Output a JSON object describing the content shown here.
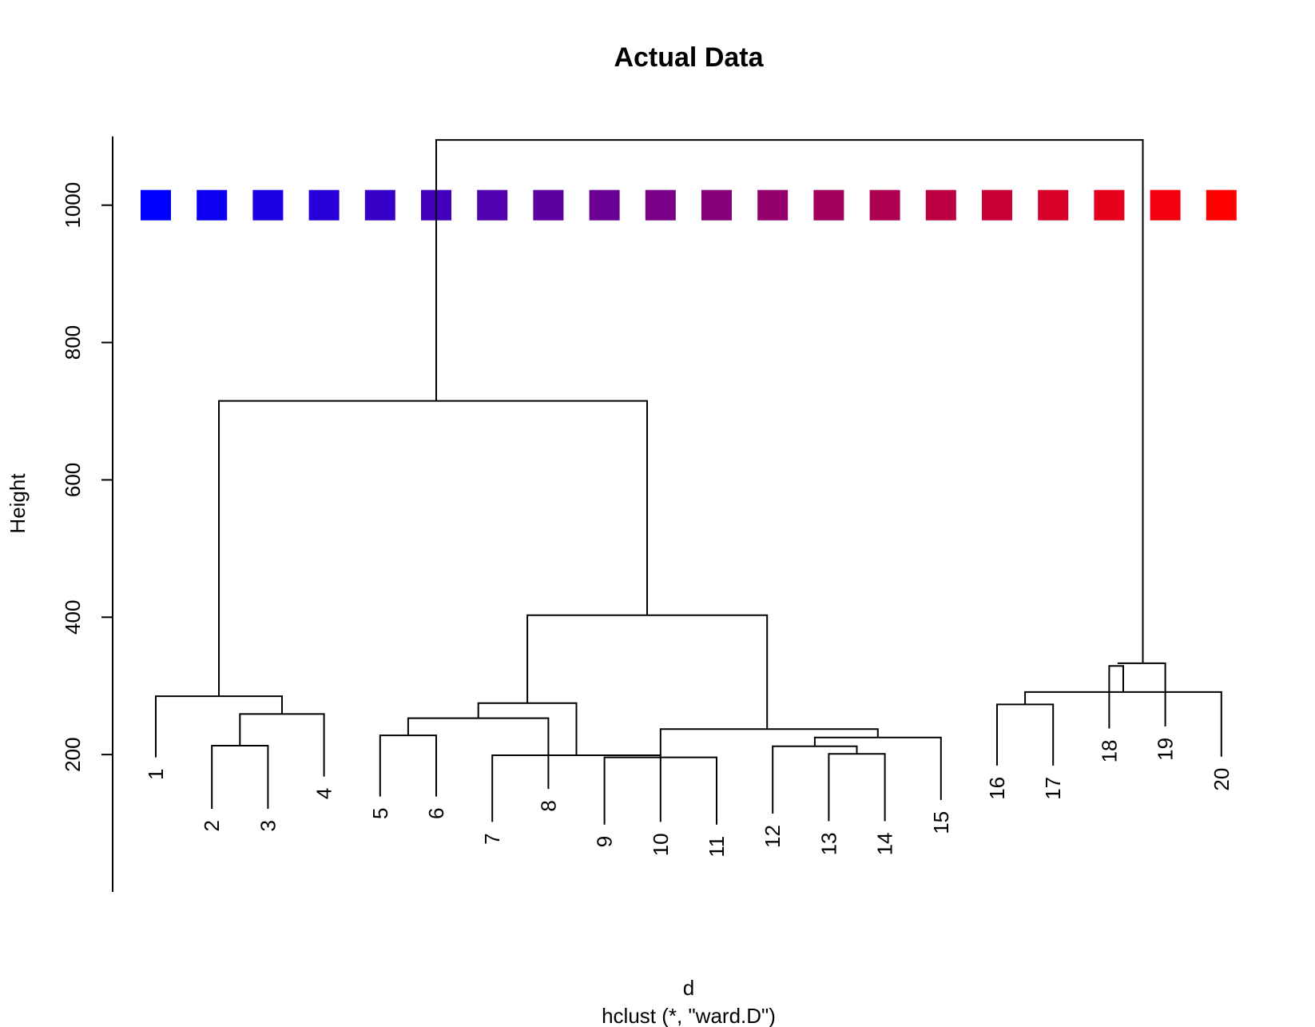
{
  "chart_data": {
    "type": "dendrogram",
    "title": "Actual Data",
    "ylabel": "Height",
    "xlabel": "d",
    "sub": "hclust (*, \"ward.D\")",
    "ylim": [
      0,
      1100
    ],
    "yticks": [
      200,
      400,
      600,
      800,
      1000
    ],
    "leaves": [
      "1",
      "2",
      "3",
      "4",
      "5",
      "6",
      "7",
      "8",
      "9",
      "10",
      "11",
      "12",
      "13",
      "14",
      "15",
      "16",
      "17",
      "18",
      "19",
      "20"
    ],
    "leaf_tips": [
      196,
      121,
      121,
      168,
      139,
      139,
      102,
      150,
      98,
      102,
      98,
      114,
      103,
      103,
      134,
      184,
      184,
      238,
      241,
      197
    ],
    "merges": [
      {
        "left": 2,
        "right": 3,
        "height": 213
      },
      {
        "left": 13,
        "right": 14,
        "height": 201
      },
      {
        "left": 9,
        "right": 10,
        "height": 196
      },
      {
        "left": 5,
        "right": 6,
        "height": 228
      },
      {
        "left": 12,
        "right": 15,
        "height": 212
      },
      {
        "left": 16,
        "right": 17,
        "height": 273
      },
      {
        "left": 18,
        "right": 19,
        "height": 329
      },
      {
        "left": 1,
        "right": 4,
        "height": 259
      },
      {
        "left": 3,
        "right": 8,
        "height": 253
      },
      {
        "left": 7,
        "right": 5,
        "height": 225
      },
      {
        "left": 11,
        "right": 10,
        "height": 275
      },
      {
        "left": 6,
        "right": 7,
        "height": 199
      },
      {
        "left": 12,
        "right": 20,
        "height": 237
      },
      {
        "left": 6,
        "right": 20,
        "height": 291
      },
      {
        "left": 8,
        "right": 9,
        "height": 285
      },
      {
        "left": 14,
        "right": 15,
        "height": 333
      },
      {
        "left": 17,
        "right": 13,
        "height": 403
      },
      {
        "left": 18,
        "right": 16,
        "height": 715
      },
      {
        "left": 19,
        "right": 19,
        "height": 1095
      }
    ],
    "color_squares": {
      "height": 1000,
      "colors": [
        "#0000FF",
        "#0D00F2",
        "#1B00E4",
        "#2800D7",
        "#3600C9",
        "#4300BC",
        "#5000AE",
        "#5E00A1",
        "#6B0094",
        "#790086",
        "#860079",
        "#94006B",
        "#A1005E",
        "#AE0050",
        "#BC0043",
        "#C90036",
        "#D70028",
        "#E4001B",
        "#F2000D",
        "#FF0000"
      ]
    }
  }
}
